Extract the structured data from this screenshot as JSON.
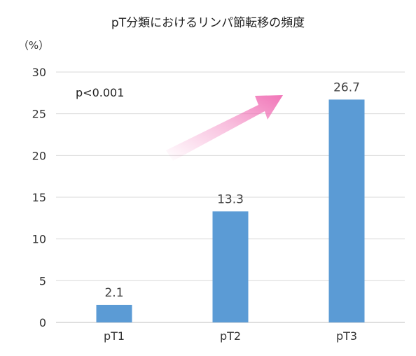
{
  "chart_data": {
    "type": "bar",
    "title": "pT分類におけるリンパ節転移の頻度",
    "unit_label": "（%）",
    "categories": [
      "pT1",
      "pT2",
      "pT3"
    ],
    "values": [
      2.1,
      13.3,
      26.7
    ],
    "data_labels": [
      "2.1",
      "13.3",
      "26.7"
    ],
    "yticks": [
      0,
      5,
      10,
      15,
      20,
      25,
      30
    ],
    "ylim": [
      0,
      30
    ],
    "grid": true,
    "annotation": "p<0.001",
    "bar_color": "#5b9bd5",
    "arrow_color": "#f06eb4"
  }
}
